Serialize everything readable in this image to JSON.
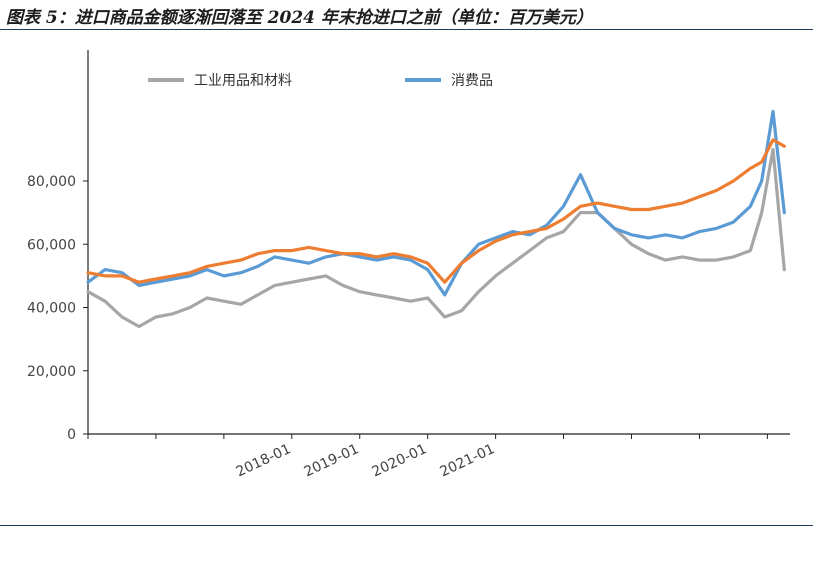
{
  "header": {
    "title": "图表 5：进口商品金额逐渐回落至 2024 年末抢进口之前（单位：百万美元）"
  },
  "chart_data": {
    "type": "line",
    "title": "图表 5：进口商品金额逐渐回落至 2024 年末抢进口之前（单位：百万美元）",
    "xlabel": "",
    "ylabel": "",
    "ylim": [
      0,
      120000
    ],
    "y_ticks": [
      0,
      20000,
      40000,
      60000,
      80000
    ],
    "y_tick_labels": [
      "0",
      "20,000",
      "40,000",
      "60,000",
      "80,000"
    ],
    "x_range": [
      "2015-01",
      "2025-05"
    ],
    "x_ticks": [
      "2018-01",
      "2019-01",
      "2020-01",
      "2021-01"
    ],
    "grid": false,
    "legend": "top",
    "x": [
      "2015-01",
      "2015-04",
      "2015-07",
      "2015-10",
      "2016-01",
      "2016-04",
      "2016-07",
      "2016-10",
      "2017-01",
      "2017-04",
      "2017-07",
      "2017-10",
      "2018-01",
      "2018-04",
      "2018-07",
      "2018-10",
      "2019-01",
      "2019-04",
      "2019-07",
      "2019-10",
      "2020-01",
      "2020-04",
      "2020-07",
      "2020-10",
      "2021-01",
      "2021-04",
      "2021-07",
      "2021-10",
      "2022-01",
      "2022-04",
      "2022-07",
      "2022-10",
      "2023-01",
      "2023-04",
      "2023-07",
      "2023-10",
      "2024-01",
      "2024-04",
      "2024-07",
      "2024-10",
      "2024-12",
      "2025-02",
      "2025-04"
    ],
    "series": [
      {
        "name": "工业用品和材料",
        "color": "#a6a6a6",
        "values": [
          45000,
          42000,
          37000,
          34000,
          37000,
          38000,
          40000,
          43000,
          42000,
          41000,
          44000,
          47000,
          48000,
          49000,
          50000,
          47000,
          45000,
          44000,
          43000,
          42000,
          43000,
          37000,
          39000,
          45000,
          50000,
          54000,
          58000,
          62000,
          64000,
          70000,
          70000,
          65000,
          60000,
          57000,
          55000,
          56000,
          55000,
          55000,
          56000,
          58000,
          70000,
          90000,
          52000
        ]
      },
      {
        "name": "消费品",
        "color": "#5b9bd5",
        "values": [
          48000,
          52000,
          51000,
          47000,
          48000,
          49000,
          50000,
          52000,
          50000,
          51000,
          53000,
          56000,
          55000,
          54000,
          56000,
          57000,
          56000,
          55000,
          56000,
          55000,
          52000,
          44000,
          54000,
          60000,
          62000,
          64000,
          63000,
          66000,
          72000,
          82000,
          70000,
          65000,
          63000,
          62000,
          63000,
          62000,
          64000,
          65000,
          67000,
          72000,
          80000,
          102000,
          70000
        ]
      },
      {
        "name": "",
        "color": "#ed7d31",
        "values": [
          51000,
          50000,
          50000,
          48000,
          49000,
          50000,
          51000,
          53000,
          54000,
          55000,
          57000,
          58000,
          58000,
          59000,
          58000,
          57000,
          57000,
          56000,
          57000,
          56000,
          54000,
          48000,
          54000,
          58000,
          61000,
          63000,
          64000,
          65000,
          68000,
          72000,
          73000,
          72000,
          71000,
          71000,
          72000,
          73000,
          75000,
          77000,
          80000,
          84000,
          86000,
          93000,
          91000
        ]
      }
    ]
  }
}
